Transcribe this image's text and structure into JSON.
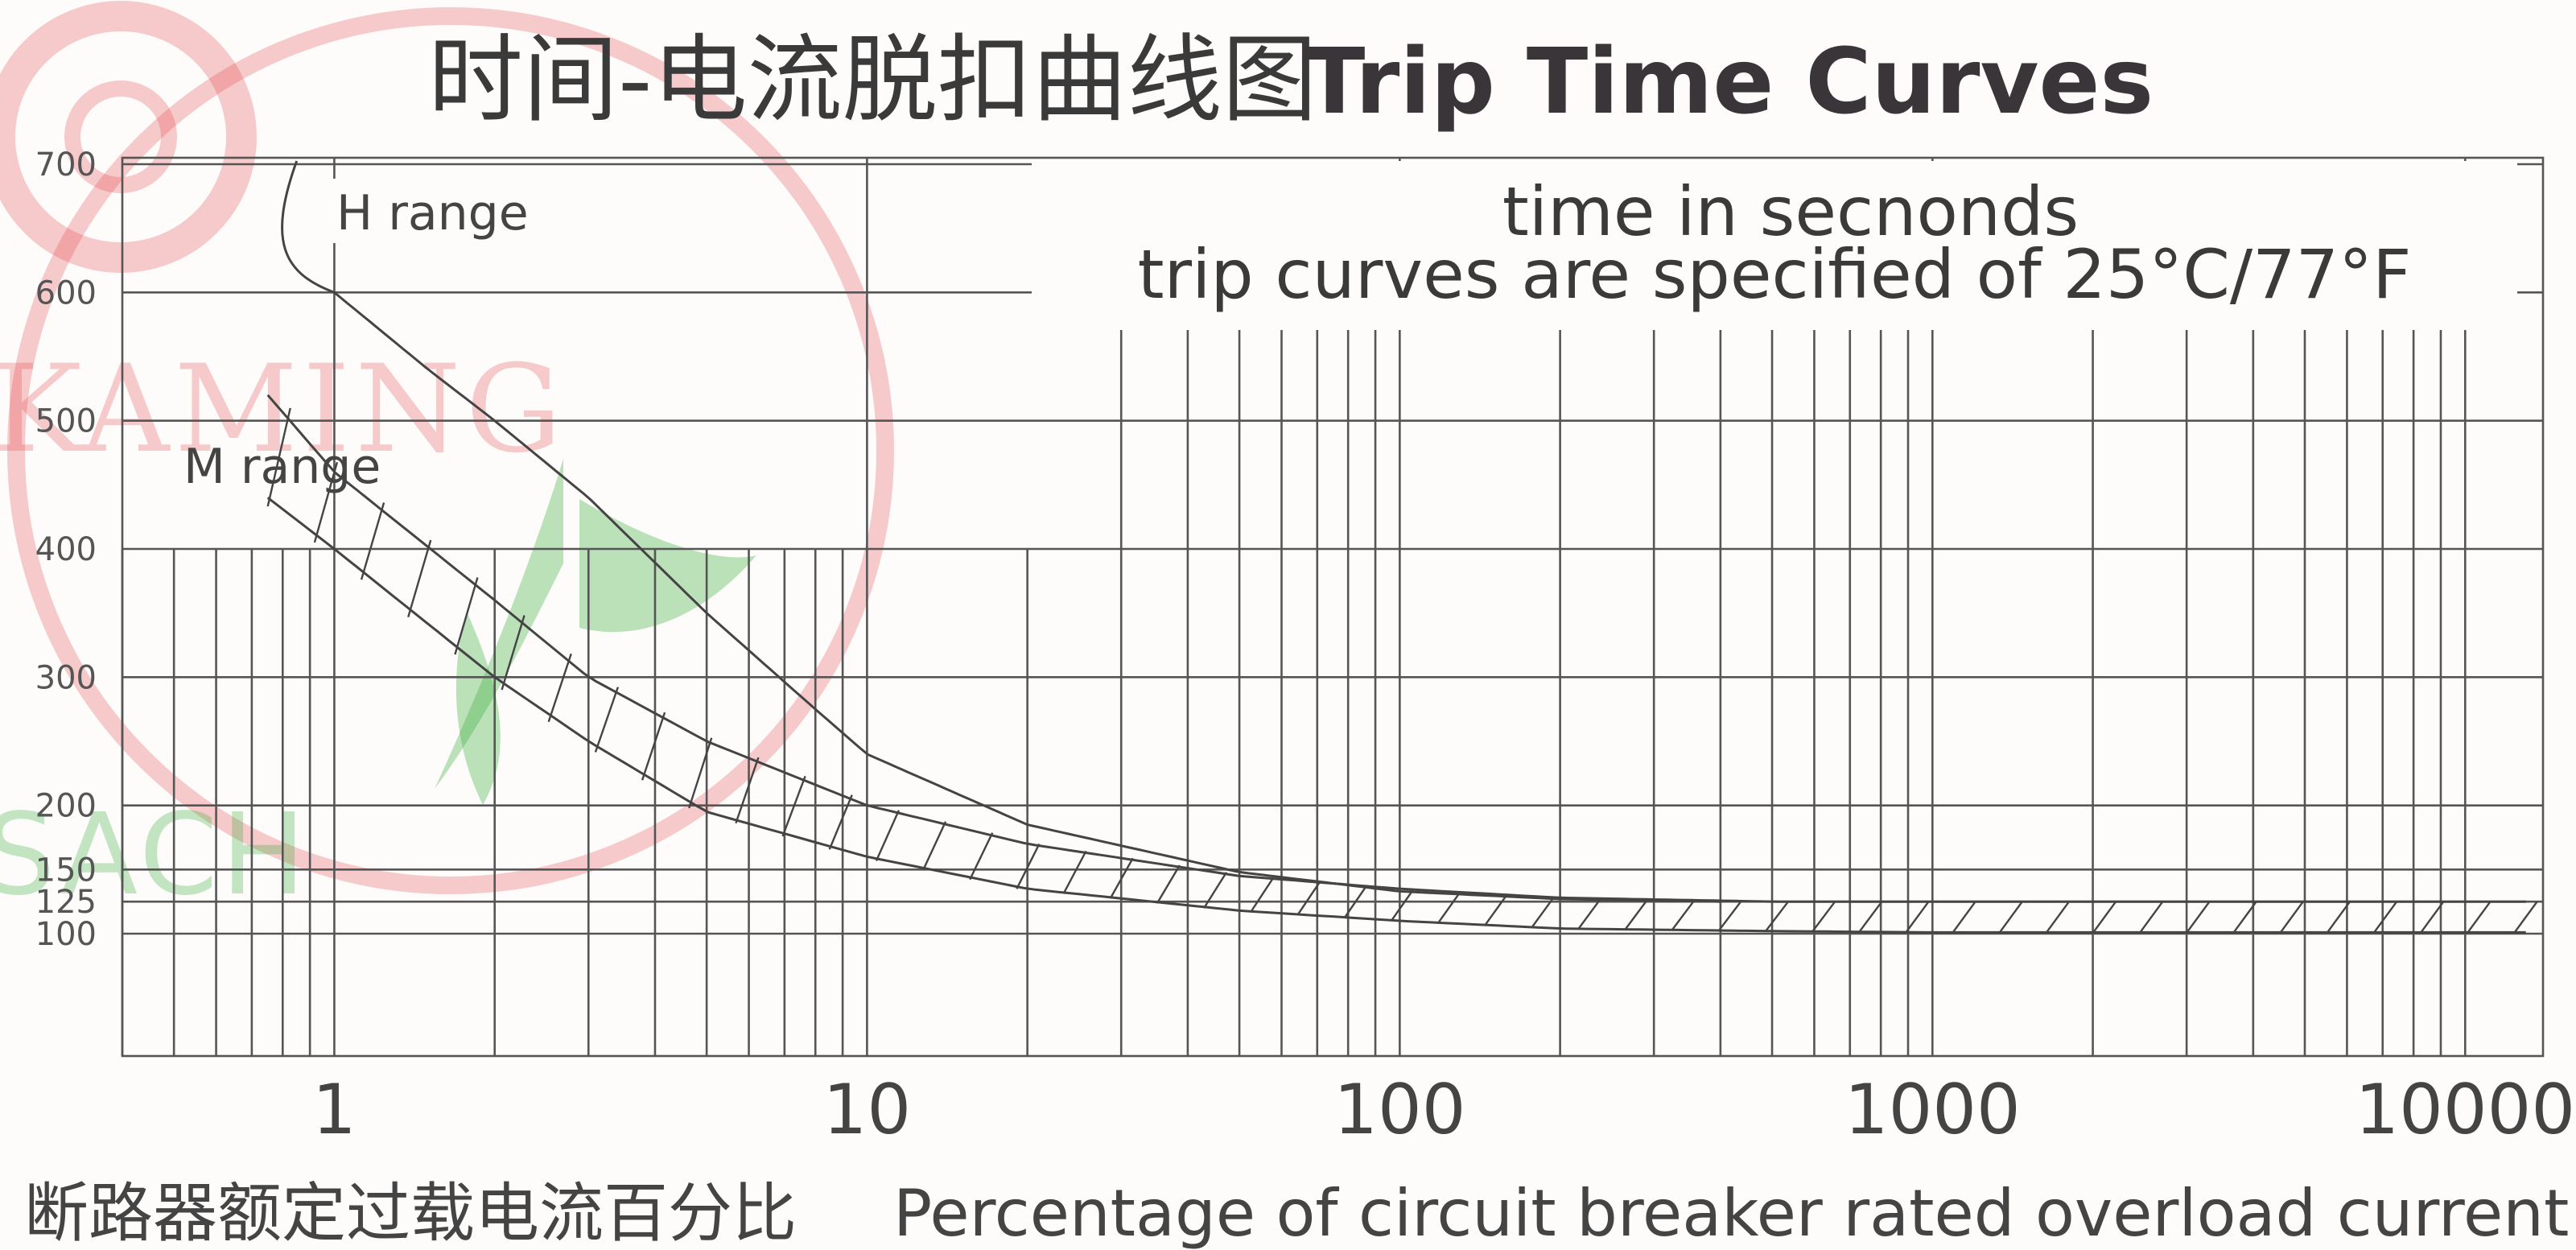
{
  "title_cn": "时间-电流脱扣曲线图",
  "title_en": "Trip Time Curves",
  "note_line1": "time in secnonds",
  "note_line2": "trip curves are specified of 25°C/77°F",
  "xlabel_cn": "断路器额定过载电流百分比",
  "xlabel_en": "Percentage of circuit breaker rated overload current",
  "watermarks": {
    "red_text": "KAMING",
    "green_text": "SACH"
  },
  "chart_data": {
    "type": "line",
    "x_scale": "log",
    "xlim": [
      0.4,
      14000
    ],
    "ylim": [
      0,
      700
    ],
    "xticks": [
      {
        "value": 1,
        "label": "1"
      },
      {
        "value": 10,
        "label": "10"
      },
      {
        "value": 100,
        "label": "100"
      },
      {
        "value": 1000,
        "label": "1000"
      },
      {
        "value": 10000,
        "label": "10000"
      }
    ],
    "yticks": [
      {
        "value": 700,
        "label": "700"
      },
      {
        "value": 600,
        "label": "600"
      },
      {
        "value": 500,
        "label": "500"
      },
      {
        "value": 400,
        "label": "400"
      },
      {
        "value": 300,
        "label": "300"
      },
      {
        "value": 200,
        "label": "200"
      },
      {
        "value": 150,
        "label": "150"
      },
      {
        "value": 125,
        "label": "125"
      },
      {
        "value": 100,
        "label": "100"
      }
    ],
    "series": [
      {
        "name": "H range",
        "x": [
          1,
          1.5,
          2,
          3,
          5,
          8,
          10,
          20,
          50,
          100,
          200,
          400
        ],
        "y": [
          600,
          540,
          500,
          440,
          350,
          275,
          240,
          185,
          148,
          133,
          127,
          125
        ]
      },
      {
        "name": "M range",
        "band": true,
        "x": [
          0.75,
          1,
          2,
          3,
          5,
          10,
          20,
          50,
          100,
          200,
          500,
          1000,
          3000,
          10000,
          13000
        ],
        "y_upper": [
          520,
          460,
          360,
          300,
          250,
          200,
          170,
          145,
          135,
          128,
          125,
          125,
          125,
          125,
          125
        ],
        "y_lower": [
          440,
          400,
          300,
          250,
          195,
          160,
          135,
          118,
          110,
          104,
          102,
          101,
          101,
          101,
          101
        ]
      }
    ],
    "grid": true
  }
}
